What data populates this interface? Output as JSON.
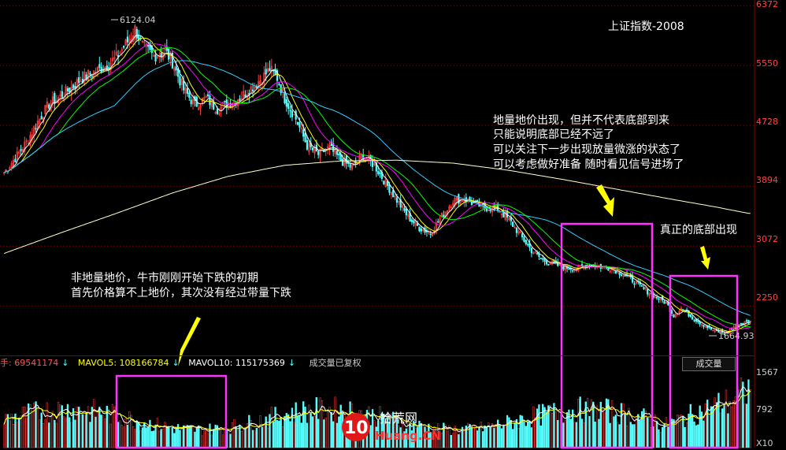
{
  "title": "上证指数-2008",
  "colors": {
    "up": "#ff3b3b",
    "down": "#54ffff",
    "ma5": "#ffffff",
    "ma10": "#ffff00",
    "ma20": "#ff00ff",
    "ma30": "#00ff00",
    "ma60": "#33ccff",
    "ma250": "#ffffcc",
    "box": "#ff33ff",
    "arrow": "#ffff00",
    "axis_text": "#ff4444",
    "grid": "#8b0000"
  },
  "price_axis": {
    "ticks": [
      "6372",
      "5550",
      "4728",
      "3894",
      "3072",
      "2250"
    ]
  },
  "volume_axis": {
    "ticks": [
      "1567",
      "792",
      "X10"
    ]
  },
  "price_labels": {
    "high": "6124.04",
    "low": "1664.93"
  },
  "volume_header": {
    "vol_label": "手: 69541174",
    "mavol5_label": "MAVOL5: 108166784",
    "mavol10_label": "MAVOL10: 115175369",
    "note": "成交量已复权",
    "button": "成交量"
  },
  "annotations": {
    "left_line1": "非地量地价，牛市刚刚开始下跌的初期",
    "left_line2": "首先价格算不上地价，其次没有经过带量下跌",
    "mid_line1": "地量地价出现，但并不代表底部到来",
    "mid_line2": "只能说明底部已经不远了",
    "mid_line3": "可以关注下一步出现放量微涨的状态了",
    "mid_line4": "可以考虑做好准备 随时看见信号进场了",
    "right_line1": "真正的底部出现"
  },
  "logo": {
    "number": "10",
    "brand": "拾荒网",
    "domain": "Huang.CN"
  },
  "chart_data": {
    "type": "candlestick",
    "title": "上证指数-2008",
    "price_range": [
      1580,
      6450
    ],
    "price_ticks": [
      6372,
      5550,
      4728,
      3894,
      3072,
      2250
    ],
    "high": 6124.04,
    "low": 1664.93,
    "close_path": [
      [
        0,
        4080
      ],
      [
        6,
        4280
      ],
      [
        12,
        4500
      ],
      [
        18,
        4780
      ],
      [
        24,
        5020
      ],
      [
        30,
        5120
      ],
      [
        36,
        5250
      ],
      [
        42,
        5380
      ],
      [
        48,
        5460
      ],
      [
        54,
        5540
      ],
      [
        60,
        5660
      ],
      [
        66,
        5880
      ],
      [
        70,
        6050
      ],
      [
        74,
        5820
      ],
      [
        80,
        5680
      ],
      [
        86,
        5750
      ],
      [
        90,
        5600
      ],
      [
        96,
        5220
      ],
      [
        102,
        5010
      ],
      [
        108,
        5100
      ],
      [
        114,
        4950
      ],
      [
        120,
        5040
      ],
      [
        126,
        5110
      ],
      [
        132,
        5240
      ],
      [
        138,
        5380
      ],
      [
        142,
        5500
      ],
      [
        146,
        5380
      ],
      [
        150,
        5100
      ],
      [
        156,
        4820
      ],
      [
        162,
        4450
      ],
      [
        168,
        4330
      ],
      [
        174,
        4420
      ],
      [
        180,
        4250
      ],
      [
        186,
        4150
      ],
      [
        192,
        4320
      ],
      [
        198,
        4180
      ],
      [
        204,
        3940
      ],
      [
        210,
        3700
      ],
      [
        216,
        3470
      ],
      [
        222,
        3320
      ],
      [
        228,
        3250
      ],
      [
        234,
        3480
      ],
      [
        240,
        3700
      ],
      [
        246,
        3720
      ],
      [
        252,
        3640
      ],
      [
        258,
        3600
      ],
      [
        264,
        3580
      ],
      [
        270,
        3430
      ],
      [
        276,
        3220
      ],
      [
        282,
        3010
      ],
      [
        288,
        2880
      ],
      [
        294,
        2820
      ],
      [
        300,
        2780
      ],
      [
        306,
        2760
      ],
      [
        312,
        2820
      ],
      [
        318,
        2790
      ],
      [
        324,
        2770
      ],
      [
        330,
        2700
      ],
      [
        336,
        2600
      ],
      [
        342,
        2480
      ],
      [
        348,
        2380
      ],
      [
        354,
        2290
      ],
      [
        358,
        2120
      ],
      [
        362,
        2220
      ],
      [
        368,
        2090
      ],
      [
        374,
        1990
      ],
      [
        380,
        1900
      ],
      [
        386,
        1880
      ],
      [
        390,
        1960
      ],
      [
        394,
        2010
      ],
      [
        398,
        2030
      ]
    ],
    "ma250_path": [
      [
        0,
        2970
      ],
      [
        30,
        3250
      ],
      [
        60,
        3520
      ],
      [
        90,
        3800
      ],
      [
        120,
        4030
      ],
      [
        150,
        4180
      ],
      [
        180,
        4240
      ],
      [
        210,
        4250
      ],
      [
        240,
        4210
      ],
      [
        270,
        4110
      ],
      [
        300,
        3980
      ],
      [
        330,
        3840
      ],
      [
        360,
        3700
      ],
      [
        380,
        3610
      ],
      [
        398,
        3520
      ]
    ],
    "volume_range": [
      0,
      1650
    ],
    "volume_ticks": [
      1567,
      792
    ],
    "legend": [
      {
        "name": "MAVOL5",
        "value": 108166784
      },
      {
        "name": "MAVOL10",
        "value": 115175369
      }
    ]
  }
}
